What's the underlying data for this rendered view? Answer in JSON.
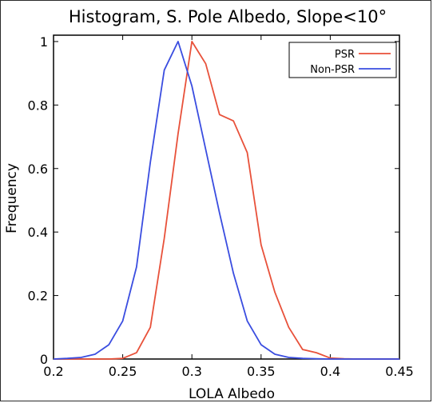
{
  "chart_data": {
    "type": "line",
    "title": "Histogram, S. Pole Albedo, Slope<10°",
    "xlabel": "LOLA Albedo",
    "ylabel": "Frequency",
    "xlim": [
      0.2,
      0.45
    ],
    "ylim": [
      0,
      1.02
    ],
    "xticks": [
      0.2,
      0.25,
      0.3,
      0.35,
      0.4,
      0.45
    ],
    "xtick_labels": [
      "0.2",
      "0.25",
      "0.3",
      "0.35",
      "0.4",
      "0.45"
    ],
    "yticks": [
      0,
      0.2,
      0.4,
      0.6,
      0.8,
      1
    ],
    "ytick_labels": [
      "0",
      "0.2",
      "0.4",
      "0.6",
      "0.8",
      "1"
    ],
    "grid": false,
    "legend_position": "top-right",
    "x": [
      0.2,
      0.21,
      0.22,
      0.23,
      0.24,
      0.25,
      0.26,
      0.27,
      0.28,
      0.29,
      0.3,
      0.31,
      0.32,
      0.33,
      0.34,
      0.35,
      0.36,
      0.37,
      0.38,
      0.39,
      0.4,
      0.41,
      0.42,
      0.43,
      0.44,
      0.45
    ],
    "series": [
      {
        "name": "PSR",
        "color": "#e8513a",
        "values": [
          0,
          0,
          0,
          0,
          0,
          0.002,
          0.02,
          0.1,
          0.38,
          0.71,
          1.0,
          0.93,
          0.77,
          0.75,
          0.65,
          0.36,
          0.21,
          0.1,
          0.03,
          0.02,
          0.003,
          0.001,
          0,
          0,
          0,
          0
        ]
      },
      {
        "name": "Non-PSR",
        "color": "#3a4de0",
        "values": [
          0,
          0.002,
          0.005,
          0.015,
          0.045,
          0.12,
          0.29,
          0.62,
          0.91,
          1.0,
          0.86,
          0.66,
          0.46,
          0.27,
          0.12,
          0.045,
          0.015,
          0.005,
          0.002,
          0.001,
          0,
          0,
          0,
          0,
          0,
          0
        ]
      }
    ]
  }
}
